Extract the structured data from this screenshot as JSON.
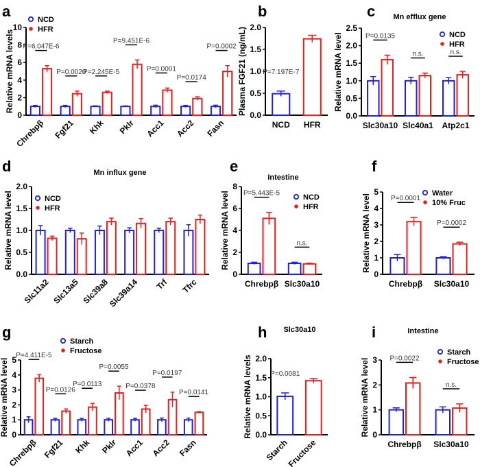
{
  "colors": {
    "control": "#1f1fe6",
    "treatment": "#f01c1c"
  },
  "chart_data": [
    {
      "type": "bar",
      "panel": "a",
      "title": "",
      "ylabel": "Relative mRNA levels",
      "ylim": [
        0,
        10
      ],
      "yticks": [
        "0",
        "2",
        "4",
        "6",
        "8",
        "10"
      ],
      "categories": [
        "Chrebpβ",
        "Fgf21",
        "Khk",
        "Pklr",
        "Acc1",
        "Acc2",
        "Fasn"
      ],
      "series": [
        {
          "name": "NCD",
          "values": [
            1,
            1,
            1,
            1,
            1,
            1,
            1
          ],
          "sem": [
            0.12,
            0.12,
            0.07,
            0.06,
            0.14,
            0.12,
            0.14
          ]
        },
        {
          "name": "HFR",
          "values": [
            5.3,
            2.45,
            2.6,
            5.8,
            2.85,
            1.9,
            5.0
          ],
          "sem": [
            0.35,
            0.3,
            0.15,
            0.5,
            0.25,
            0.2,
            0.65
          ]
        }
      ],
      "annotations": [
        "P=6.047E-6",
        "P=0.0020",
        "P=2.245E-5",
        "P=9.451E-6",
        "P=0.0001",
        "P=0.0174",
        "P=0.0002"
      ]
    },
    {
      "type": "bar",
      "panel": "b",
      "title": "",
      "ylabel": "Plasma FGF21 (ng/mL)",
      "ylim": [
        0,
        2
      ],
      "yticks": [
        "0.0",
        "0.5",
        "1.0",
        "1.5",
        "2.0"
      ],
      "categories": [
        "NCD",
        "HFR"
      ],
      "series": [
        {
          "values": [
            0.49,
            1.74
          ],
          "sem": [
            0.06,
            0.08
          ]
        }
      ],
      "annotations": [
        "P=7.197E-7"
      ]
    },
    {
      "type": "bar",
      "panel": "c",
      "title": "Mn efflux gene",
      "ylabel": "Relative mRNA  level",
      "ylim": [
        0,
        2.5
      ],
      "yticks": [
        "0.0",
        "0.5",
        "1.0",
        "1.5",
        "2.0",
        "2.5"
      ],
      "categories": [
        "Slc30a10",
        "Slc40a1",
        "Atp2c1"
      ],
      "series": [
        {
          "name": "NCD",
          "values": [
            1.0,
            1.0,
            1.0
          ],
          "sem": [
            0.12,
            0.1,
            0.09
          ]
        },
        {
          "name": "HFR",
          "values": [
            1.6,
            1.15,
            1.17
          ],
          "sem": [
            0.13,
            0.07,
            0.1
          ]
        }
      ],
      "annotations": [
        "P=0.0135",
        "n.s.",
        "n.s."
      ]
    },
    {
      "type": "bar",
      "panel": "d",
      "title": "Mn influx gene",
      "ylabel": "Relative mRNA  level",
      "ylim": [
        0,
        2
      ],
      "yticks": [
        "0.0",
        "0.5",
        "1.0",
        "1.5",
        "2.0"
      ],
      "categories": [
        "Slc11a2",
        "Slc13a5",
        "Slc39a8",
        "Slc39a14",
        "Trf",
        "Tfrc"
      ],
      "series": [
        {
          "name": "NCD",
          "values": [
            1.0,
            1.0,
            1.0,
            1.0,
            1.0,
            1.0
          ],
          "sem": [
            0.11,
            0.05,
            0.1,
            0.06,
            0.05,
            0.13
          ]
        },
        {
          "name": "HFR",
          "values": [
            0.82,
            0.81,
            1.2,
            1.16,
            1.2,
            1.25
          ],
          "sem": [
            0.05,
            0.13,
            0.08,
            0.11,
            0.08,
            0.1
          ]
        }
      ],
      "annotations": [
        "",
        "",
        "",
        "",
        "",
        ""
      ]
    },
    {
      "type": "bar",
      "panel": "e",
      "title": "Intestine",
      "ylabel": "Relative mRNA level",
      "ylim": [
        0,
        8
      ],
      "yticks": [
        "0",
        "2",
        "4",
        "6",
        "8"
      ],
      "categories": [
        "Chrebpβ",
        "Slc30a10"
      ],
      "series": [
        {
          "name": "NCD",
          "values": [
            1.0,
            1.0
          ],
          "sem": [
            0.1,
            0.1
          ]
        },
        {
          "name": "HFR",
          "values": [
            5.1,
            0.95
          ],
          "sem": [
            0.55,
            0.07
          ]
        }
      ],
      "annotations": [
        "P=5.443E-5",
        "n.s."
      ]
    },
    {
      "type": "bar",
      "panel": "f",
      "title": "",
      "ylabel": "Relative mRNA level",
      "ylim": [
        0,
        5
      ],
      "yticks": [
        "0",
        "1",
        "2",
        "3",
        "4",
        "5"
      ],
      "categories": [
        "Chrebpβ",
        "Slc30a10"
      ],
      "series": [
        {
          "name": "Water",
          "values": [
            1.0,
            1.0
          ],
          "sem": [
            0.2,
            0.07
          ]
        },
        {
          "name": "10% Fruc",
          "values": [
            3.2,
            1.85
          ],
          "sem": [
            0.25,
            0.1
          ]
        }
      ],
      "annotations": [
        "P=0.0001",
        "P=0.0002"
      ]
    },
    {
      "type": "bar",
      "panel": "g",
      "title": "",
      "ylabel": "Relative mRNA  level",
      "ylim": [
        0,
        5
      ],
      "yticks": [
        "0",
        "1",
        "2",
        "3",
        "4",
        "5"
      ],
      "categories": [
        "Chrebpβ",
        "Fgf21",
        "Khk",
        "Pklr",
        "Acc1",
        "Acc2",
        "Fasn"
      ],
      "series": [
        {
          "name": "Starch",
          "values": [
            1,
            1,
            1,
            1,
            1,
            1,
            1
          ],
          "sem": [
            0.2,
            0.1,
            0.1,
            0.1,
            0.1,
            0.12,
            0.12
          ]
        },
        {
          "name": "Fructose",
          "values": [
            3.78,
            1.58,
            1.85,
            2.8,
            1.72,
            2.35,
            1.5
          ],
          "sem": [
            0.25,
            0.15,
            0.25,
            0.45,
            0.25,
            0.5,
            0.05
          ]
        }
      ],
      "annotations": [
        "P=4.411E-5",
        "P=0.0126",
        "P=0.0113",
        "P=0.0055",
        "P=0.0378",
        "P=0.0197",
        "P=0.0141"
      ]
    },
    {
      "type": "bar",
      "panel": "h",
      "title": "Slc30a10",
      "ylabel": "Relative mRNA levels",
      "ylim": [
        0,
        2
      ],
      "yticks": [
        "0.0",
        "0.5",
        "1.0",
        "1.5",
        "2.0"
      ],
      "categories": [
        "Starch",
        "Fructose"
      ],
      "series": [
        {
          "values": [
            1.01,
            1.42
          ],
          "sem": [
            0.09,
            0.06
          ]
        }
      ],
      "annotations": [
        "P=0.0081"
      ]
    },
    {
      "type": "bar",
      "panel": "i",
      "title": "Intestine",
      "ylabel": "Relative mRNA level",
      "ylim": [
        0,
        3
      ],
      "yticks": [
        "0",
        "1",
        "2",
        "3"
      ],
      "categories": [
        "Chrebpβ",
        "Slc30a10"
      ],
      "series": [
        {
          "name": "Starch",
          "values": [
            1.0,
            1.0
          ],
          "sem": [
            0.08,
            0.12
          ]
        },
        {
          "name": "Fructose",
          "values": [
            2.08,
            1.07
          ],
          "sem": [
            0.22,
            0.17
          ]
        }
      ],
      "annotations": [
        "P=0.0022",
        "n.s."
      ]
    }
  ]
}
